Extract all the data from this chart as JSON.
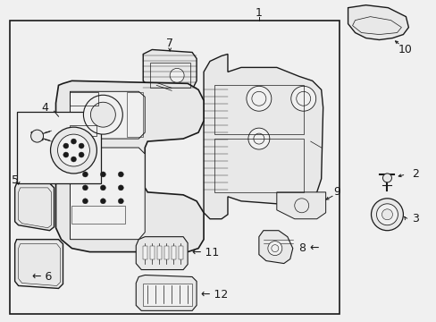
{
  "bg_color": "#f0f0f0",
  "part_fill": "#e8e8e8",
  "line_color": "#1a1a1a",
  "label_color": "#000000",
  "fig_width": 4.89,
  "fig_height": 3.6,
  "dpi": 100
}
